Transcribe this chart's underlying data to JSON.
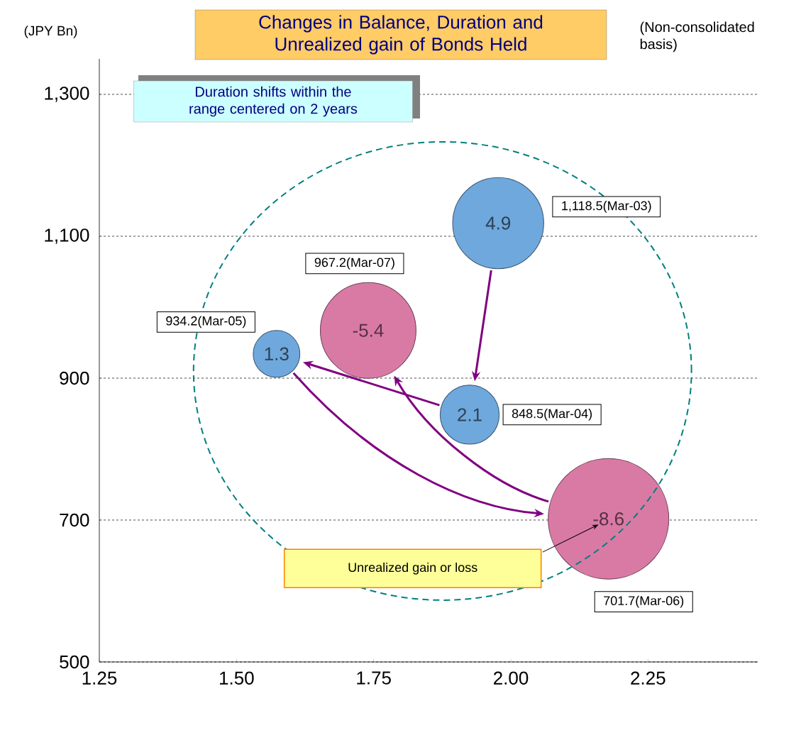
{
  "chart_data": {
    "type": "bubble",
    "title": "Changes in Balance, Duration and Unrealized gain of Bonds Held",
    "ylabel": "(JPY Bn)",
    "x": [
      1.977,
      1.925,
      1.573,
      2.178,
      1.74
    ],
    "values": [
      1118.5,
      848.5,
      934.2,
      701.7,
      967.2
    ],
    "sizes": [
      0.57,
      0.24,
      0.15,
      1,
      0.63
    ],
    "colors": [
      "#6fa8dc",
      "#6fa8dc",
      "#6fa8dc",
      "#d97aa5",
      "#d97aa5"
    ],
    "value_labels": [
      "1,118.5(Mar-03)",
      "848.5(Mar-04)",
      "934.2(Mar-05)",
      "701.7(Mar-06)",
      "967.2(Mar-07)"
    ],
    "annotations": [
      "Duration shifts within the range centered on 2 years",
      "(Non-consolidated basis)",
      "Unrealized gain or loss",
      {
        "text": "4.9",
        "x": 1.977,
        "y": 1118.5
      },
      {
        "text": "2.1",
        "x": 1.925,
        "y": 848.5
      },
      {
        "text": "1.3",
        "x": 1.573,
        "y": 934.2
      },
      {
        "text": "-8.6",
        "x": 2.178,
        "y": 701.7
      },
      {
        "text": "-5.4",
        "x": 1.74,
        "y": 967.2
      }
    ],
    "xlim": [
      1.25,
      2.45
    ],
    "ylim": [
      500,
      1350
    ],
    "xticks": [
      1.25,
      {
        "value": 1.5,
        "label": "1.50"
      },
      1.75,
      {
        "value": 2.0,
        "label": "2.00"
      },
      2.25
    ],
    "yticks": [
      500,
      700,
      900,
      {
        "value": 1100,
        "label": "1,100"
      },
      {
        "value": 1300,
        "label": "1,300"
      }
    ],
    "grid": "y"
  }
}
